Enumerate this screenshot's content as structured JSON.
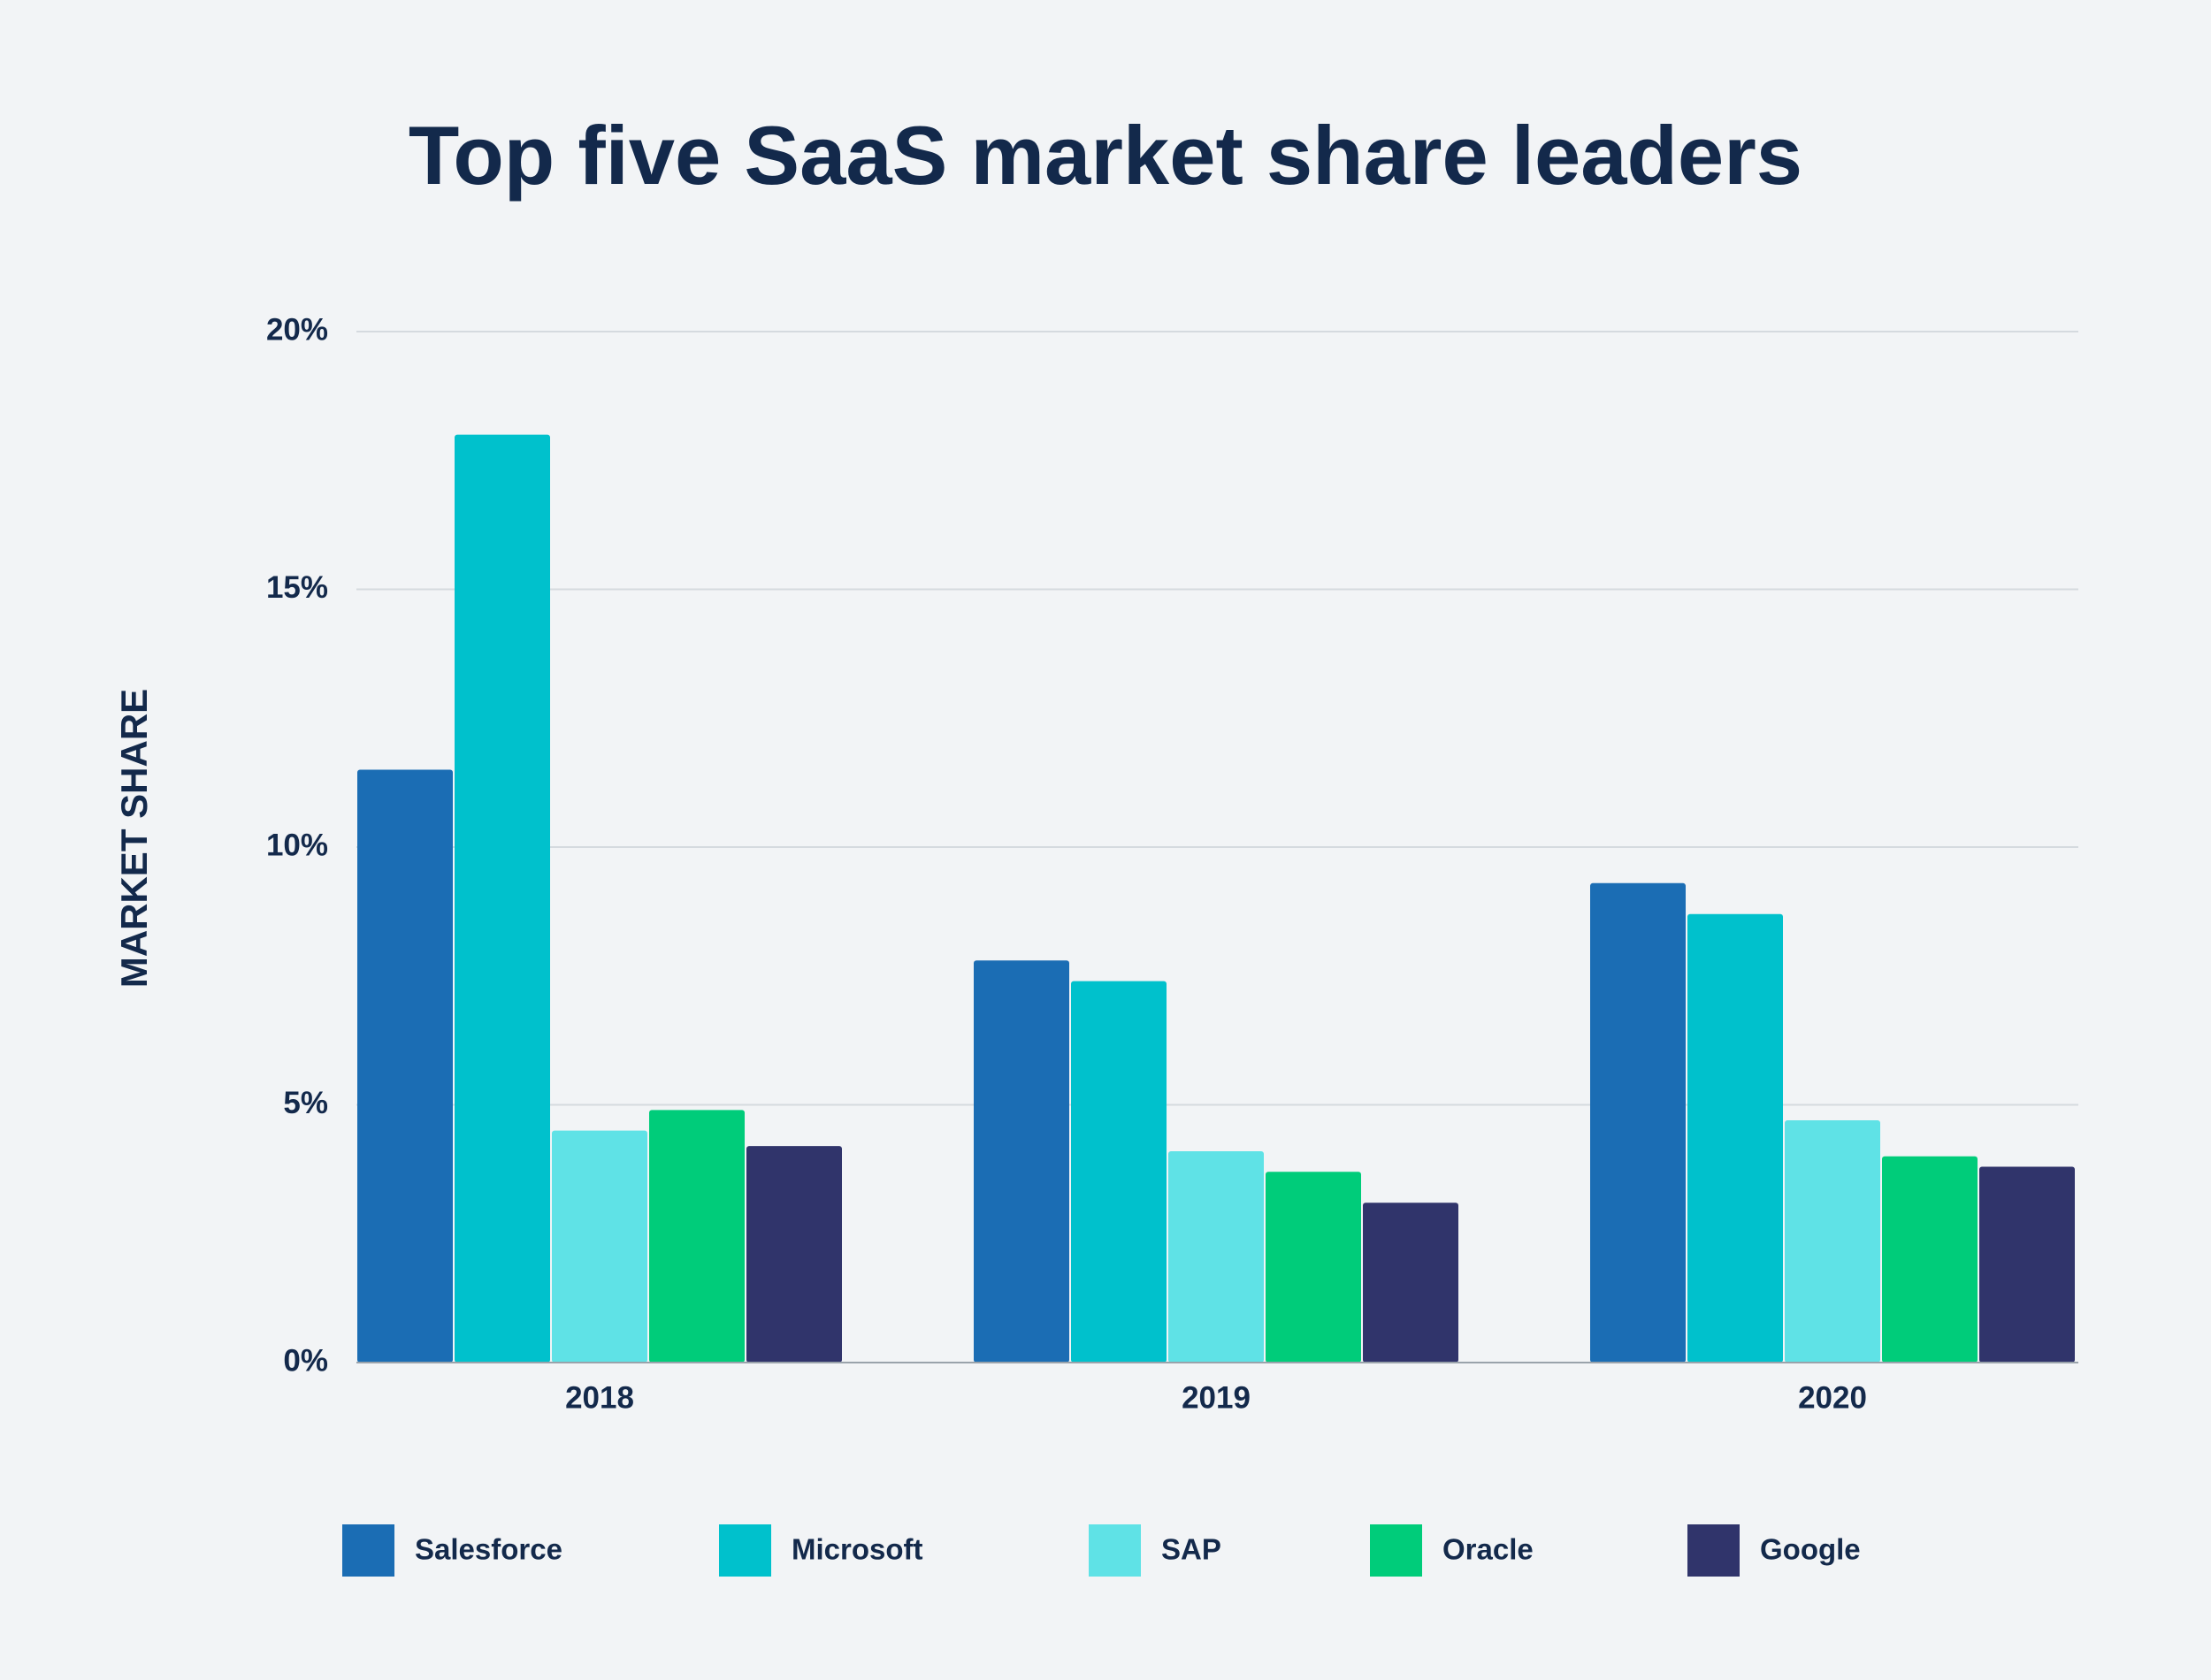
{
  "chart_data": {
    "type": "bar",
    "title": "Top five SaaS market share leaders",
    "y_label": "MARKET SHARE",
    "categories": [
      "2018",
      "2019",
      "2020"
    ],
    "series": [
      {
        "name": "Salesforce",
        "color": "#1b6db4",
        "values": [
          11.5,
          7.8,
          9.3
        ]
      },
      {
        "name": "Microsoft",
        "color": "#00c1cc",
        "values": [
          18.0,
          7.4,
          8.7
        ]
      },
      {
        "name": "SAP",
        "color": "#5fe2e6",
        "values": [
          4.5,
          4.1,
          4.7
        ]
      },
      {
        "name": "Oracle",
        "color": "#00cc7a",
        "values": [
          4.9,
          3.7,
          4.0
        ]
      },
      {
        "name": "Google",
        "color": "#30346b",
        "values": [
          4.2,
          3.1,
          3.8
        ]
      }
    ],
    "ylim": [
      0,
      20
    ],
    "yticks": [
      {
        "value": 0,
        "label": "0%"
      },
      {
        "value": 5,
        "label": "5%"
      },
      {
        "value": 10,
        "label": "10%"
      },
      {
        "value": 15,
        "label": "15%"
      },
      {
        "value": 20,
        "label": "20%"
      }
    ],
    "grid": true,
    "legend": "bottom"
  }
}
